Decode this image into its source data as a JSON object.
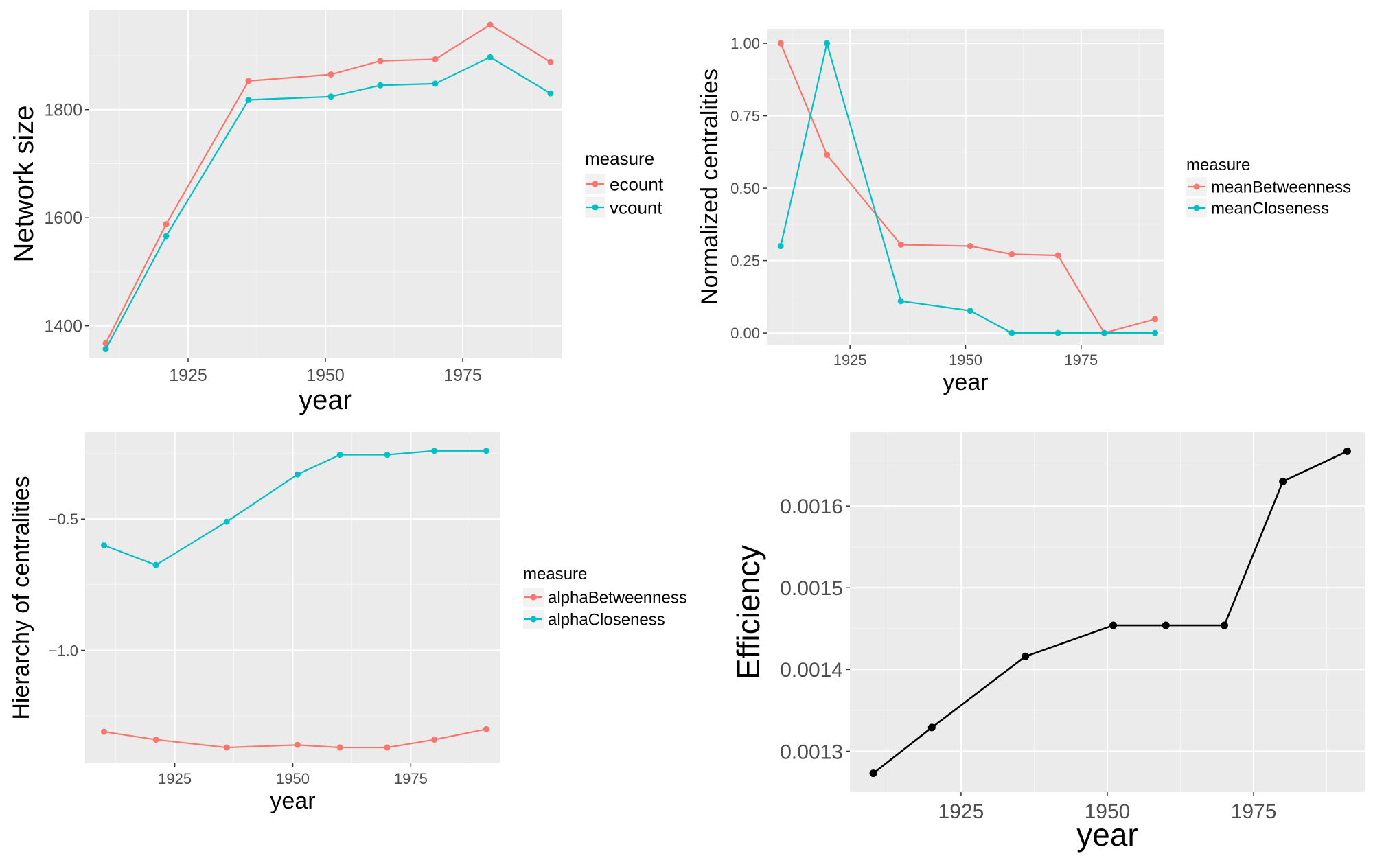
{
  "colors": {
    "panel": "#ebebeb",
    "grid_major": "#ffffff",
    "grid_minor": "#f5f5f5",
    "series_red": "#f8766d",
    "series_teal": "#00bfc4",
    "series_black": "#000000",
    "tick_text": "#4d4d4d"
  },
  "chart_data": [
    {
      "id": "network-size",
      "type": "line",
      "ylabel": "Network size",
      "xlabel": "year",
      "xlim": [
        1907,
        1993
      ],
      "ylim": [
        1340,
        1985
      ],
      "x_ticks": [
        1925,
        1950,
        1975
      ],
      "y_ticks": [
        1400,
        1600,
        1800
      ],
      "y_tick_labels": [
        "1400",
        "1600",
        "1800"
      ],
      "x": [
        1910,
        1921,
        1936,
        1951,
        1960,
        1970,
        1980,
        1991
      ],
      "legend": {
        "title": "measure",
        "position": "right"
      },
      "series": [
        {
          "name": "ecount",
          "color": "#f8766d",
          "values": [
            1368,
            1588,
            1853,
            1865,
            1890,
            1893,
            1957,
            1888
          ]
        },
        {
          "name": "vcount",
          "color": "#00bfc4",
          "values": [
            1357,
            1566,
            1818,
            1824,
            1845,
            1848,
            1897,
            1830
          ]
        }
      ]
    },
    {
      "id": "normalized-centralities",
      "type": "line",
      "ylabel": "Normalized centralities",
      "xlabel": "year",
      "xlim": [
        1907,
        1993
      ],
      "ylim": [
        -0.04,
        1.05
      ],
      "x_ticks": [
        1925,
        1950,
        1975
      ],
      "y_ticks": [
        0,
        0.25,
        0.5,
        0.75,
        1.0
      ],
      "y_tick_labels": [
        "0.00",
        "0.25",
        "0.50",
        "0.75",
        "1.00"
      ],
      "x": [
        1910,
        1920,
        1936,
        1951,
        1960,
        1970,
        1980,
        1991
      ],
      "legend": {
        "title": "measure",
        "position": "right"
      },
      "series": [
        {
          "name": "meanBetweenness",
          "color": "#f8766d",
          "values": [
            1.0,
            0.615,
            0.305,
            0.3,
            0.272,
            0.268,
            0.0,
            0.048
          ]
        },
        {
          "name": "meanCloseness",
          "color": "#00bfc4",
          "values": [
            0.3,
            1.0,
            0.11,
            0.077,
            0.0,
            0.0,
            0.0,
            0.0
          ]
        }
      ]
    },
    {
      "id": "hierarchy-of-centralities",
      "type": "line",
      "ylabel": "Hierarchy of centralities",
      "xlabel": "year",
      "xlim": [
        1906,
        1994
      ],
      "ylim": [
        -1.43,
        -0.17
      ],
      "x_ticks": [
        1925,
        1950,
        1975
      ],
      "y_ticks": [
        -0.5,
        -1.0
      ],
      "y_tick_labels": [
        "−0.5",
        "−1.0"
      ],
      "x": [
        1910,
        1921,
        1936,
        1951,
        1960,
        1970,
        1980,
        1991
      ],
      "legend": {
        "title": "measure",
        "position": "right"
      },
      "series": [
        {
          "name": "alphaBetweenness",
          "color": "#f8766d",
          "values": [
            -1.31,
            -1.34,
            -1.37,
            -1.36,
            -1.37,
            -1.37,
            -1.34,
            -1.3
          ]
        },
        {
          "name": "alphaCloseness",
          "color": "#00bfc4",
          "values": [
            -0.6,
            -0.675,
            -0.51,
            -0.33,
            -0.255,
            -0.255,
            -0.24,
            -0.24
          ]
        }
      ]
    },
    {
      "id": "efficiency",
      "type": "line",
      "ylabel": "Efficiency",
      "xlabel": "year",
      "xlim": [
        1906,
        1994
      ],
      "ylim": [
        0.00125,
        0.00169
      ],
      "x_ticks": [
        1925,
        1950,
        1975
      ],
      "y_ticks": [
        0.0013,
        0.0014,
        0.0015,
        0.0016
      ],
      "y_tick_labels": [
        "0.0013",
        "0.0014",
        "0.0015",
        "0.0016"
      ],
      "x": [
        1910,
        1920,
        1936,
        1951,
        1960,
        1970,
        1980,
        1991
      ],
      "legend": null,
      "series": [
        {
          "name": "efficiency",
          "color": "#000000",
          "values": [
            0.001273,
            0.001329,
            0.001416,
            0.001454,
            0.001454,
            0.001454,
            0.00163,
            0.001667
          ]
        }
      ]
    }
  ]
}
